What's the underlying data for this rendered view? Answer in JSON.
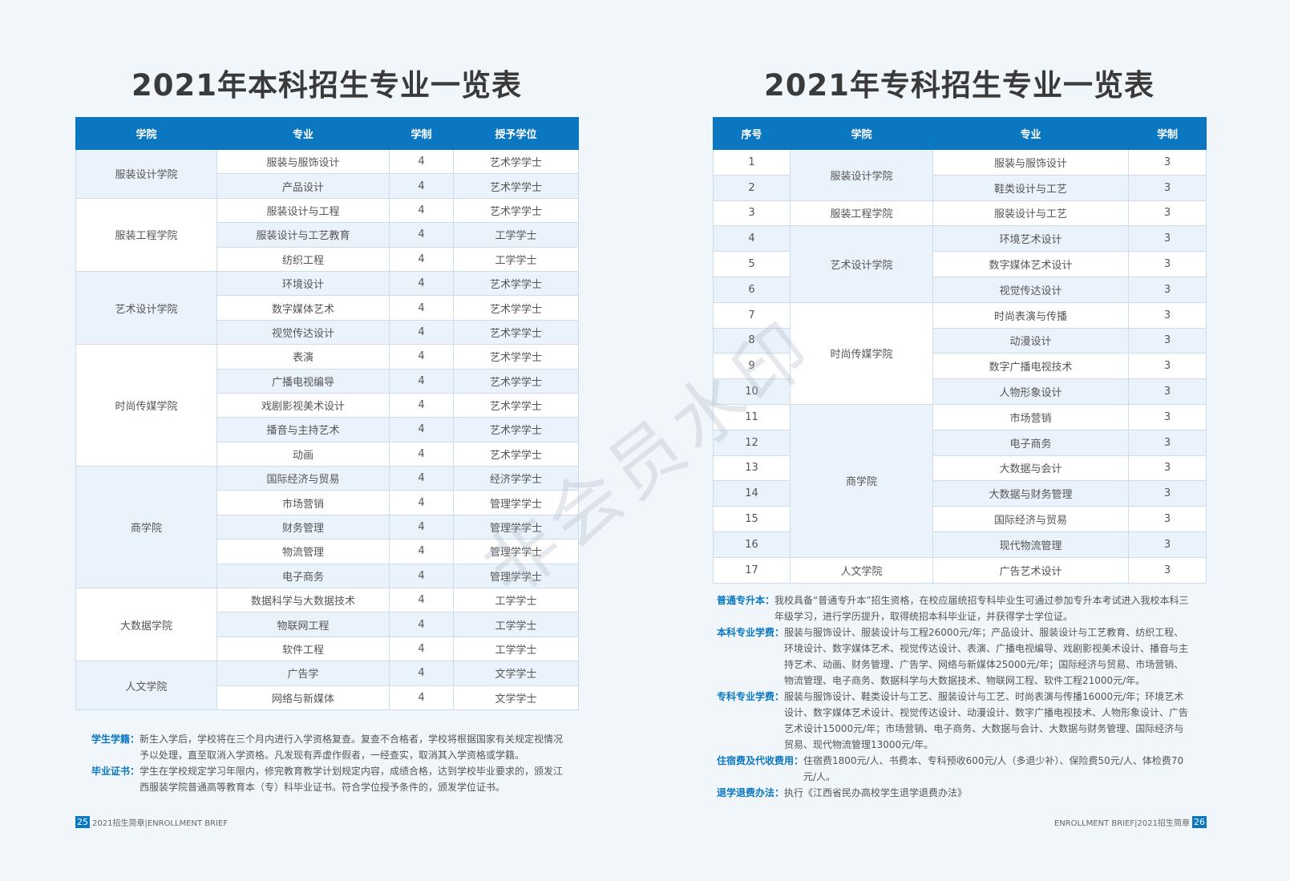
{
  "left": {
    "title": "2021年本科招生专业一览表",
    "table": {
      "headers": [
        "学院",
        "专业",
        "学制",
        "授予学位"
      ],
      "groups": [
        {
          "college": "服装设计学院",
          "rows": [
            [
              "服装与服饰设计",
              4,
              "艺术学学士"
            ],
            [
              "产品设计",
              4,
              "艺术学学士"
            ]
          ]
        },
        {
          "college": "服装工程学院",
          "rows": [
            [
              "服装设计与工程",
              4,
              "艺术学学士"
            ],
            [
              "服装设计与工艺教育",
              4,
              "工学学士"
            ],
            [
              "纺织工程",
              4,
              "工学学士"
            ]
          ]
        },
        {
          "college": "艺术设计学院",
          "rows": [
            [
              "环境设计",
              4,
              "艺术学学士"
            ],
            [
              "数字媒体艺术",
              4,
              "艺术学学士"
            ],
            [
              "视觉传达设计",
              4,
              "艺术学学士"
            ]
          ]
        },
        {
          "college": "时尚传媒学院",
          "rows": [
            [
              "表演",
              4,
              "艺术学学士"
            ],
            [
              "广播电视编导",
              4,
              "艺术学学士"
            ],
            [
              "戏剧影视美术设计",
              4,
              "艺术学学士"
            ],
            [
              "播音与主持艺术",
              4,
              "艺术学学士"
            ],
            [
              "动画",
              4,
              "艺术学学士"
            ]
          ]
        },
        {
          "college": "商学院",
          "rows": [
            [
              "国际经济与贸易",
              4,
              "经济学学士"
            ],
            [
              "市场营销",
              4,
              "管理学学士"
            ],
            [
              "财务管理",
              4,
              "管理学学士"
            ],
            [
              "物流管理",
              4,
              "管理学学士"
            ],
            [
              "电子商务",
              4,
              "管理学学士"
            ]
          ]
        },
        {
          "college": "大数据学院",
          "rows": [
            [
              "数据科学与大数据技术",
              4,
              "工学学士"
            ],
            [
              "物联网工程",
              4,
              "工学学士"
            ],
            [
              "软件工程",
              4,
              "工学学士"
            ]
          ]
        },
        {
          "college": "人文学院",
          "rows": [
            [
              "广告学",
              4,
              "文学学士"
            ],
            [
              "网络与新媒体",
              4,
              "文学学士"
            ]
          ]
        }
      ]
    },
    "notes": [
      {
        "label": "学生学籍：",
        "text": "新生入学后，学校将在三个月内进行入学资格复查。复查不合格者，学校将根据国家有关规定视情况予以处理，直至取消入学资格。凡发现有弄虚作假者，一经查实，取消其入学资格或学籍。"
      },
      {
        "label": "毕业证书：",
        "text": "学生在学校规定学习年限内，修完教育教学计划规定内容，成绩合格，达到学校毕业要求的，颁发江西服装学院普通高等教育本（专）科毕业证书。符合学位授予条件的，颁发学位证书。"
      }
    ],
    "footer": {
      "page": "25",
      "text": "2021招生简章|ENROLLMENT BRIEF"
    }
  },
  "right": {
    "title": "2021年专科招生专业一览表",
    "table": {
      "headers": [
        "序号",
        "学院",
        "专业",
        "学制"
      ],
      "groups": [
        {
          "college": "服装设计学院",
          "rows": [
            [
              1,
              "服装与服饰设计",
              3
            ],
            [
              2,
              "鞋类设计与工艺",
              3
            ]
          ]
        },
        {
          "college": "服装工程学院",
          "rows": [
            [
              3,
              "服装设计与工艺",
              3
            ]
          ]
        },
        {
          "college": "艺术设计学院",
          "rows": [
            [
              4,
              "环境艺术设计",
              3
            ],
            [
              5,
              "数字媒体艺术设计",
              3
            ],
            [
              6,
              "视觉传达设计",
              3
            ]
          ]
        },
        {
          "college": "时尚传媒学院",
          "rows": [
            [
              7,
              "时尚表演与传播",
              3
            ],
            [
              8,
              "动漫设计",
              3
            ],
            [
              9,
              "数字广播电视技术",
              3
            ],
            [
              10,
              "人物形象设计",
              3
            ]
          ]
        },
        {
          "college": "商学院",
          "rows": [
            [
              11,
              "市场营销",
              3
            ],
            [
              12,
              "电子商务",
              3
            ],
            [
              13,
              "大数据与会计",
              3
            ],
            [
              14,
              "大数据与财务管理",
              3
            ],
            [
              15,
              "国际经济与贸易",
              3
            ],
            [
              16,
              "现代物流管理",
              3
            ]
          ]
        },
        {
          "college": "人文学院",
          "rows": [
            [
              17,
              "广告艺术设计",
              3
            ]
          ]
        }
      ]
    },
    "notes": [
      {
        "label": "普通专升本：",
        "text": "我校具备“普通专升本”招生资格，在校应届统招专科毕业生可通过参加专升本考试进入我校本科三年级学习，进行学历提升，取得统招本科毕业证，并获得学士学位证。"
      },
      {
        "label": "本科专业学费：",
        "text": "服装与服饰设计、服装设计与工程26000元/年；产品设计、服装设计与工艺教育、纺织工程、环境设计、数字媒体艺术、视觉传达设计、表演、广播电视编导、戏剧影视美术设计、播音与主持艺术、动画、财务管理、广告学、网络与新媒体25000元/年；国际经济与贸易、市场营销、物流管理、电子商务、数据科学与大数据技术、物联网工程、软件工程21000元/年。"
      },
      {
        "label": "专科专业学费：",
        "text": "服装与服饰设计、鞋类设计与工艺、服装设计与工艺、时尚表演与传播16000元/年；环境艺术设计、数字媒体艺术设计、视觉传达设计、动漫设计、数字广播电视技术、人物形象设计、广告艺术设计15000元/年；市场营销、电子商务、大数据与会计、大数据与财务管理、国际经济与贸易、现代物流管理13000元/年。"
      },
      {
        "label": "住宿费及代收费用：",
        "text": "住宿费1800元/人、书费本、专科预收600元/人（多退少补）、保险费50元/人、体检费70元/人。"
      },
      {
        "label": "退学退费办法：",
        "text": "执行《江西省民办高校学生退学退费办法》"
      }
    ],
    "footer": {
      "page": "26",
      "text": "ENROLLMENT BRIEF|2021招生简章"
    }
  },
  "watermark": "非会员水印"
}
